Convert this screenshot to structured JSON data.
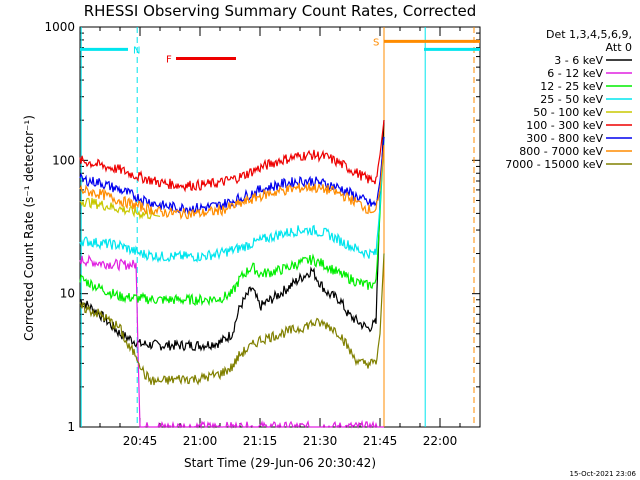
{
  "chart_data": {
    "type": "line",
    "title": "RHESSI Observing Summary Count Rates, Corrected",
    "xlabel": "Start Time (29-Jun-06 20:30:42)",
    "ylabel": "Corrected Count Rate (s⁻¹ detector⁻¹)",
    "yscale": "log",
    "ylim": [
      1,
      1000
    ],
    "xlim_minutes": [
      0,
      100
    ],
    "x_tick_labels": [
      "20:45",
      "21:00",
      "21:15",
      "21:30",
      "21:45",
      "22:00"
    ],
    "x_tick_minutes": [
      15,
      30,
      45,
      60,
      75,
      90
    ],
    "y_tick_labels": [
      "1",
      "10",
      "100",
      "1000"
    ],
    "y_tick_values": [
      1,
      10,
      100,
      1000
    ],
    "legend_header": [
      "Det 1,3,4,5,6,9,",
      "Att 0"
    ],
    "legend_position": "right, outside plot",
    "footer_stamp": "15-Oct-2021 23:06",
    "series": [
      {
        "name": "3 - 6 keV",
        "color": "#000000",
        "x": [
          0,
          5,
          10,
          15,
          20,
          25,
          30,
          35,
          38,
          40,
          43,
          45,
          50,
          55,
          58,
          60,
          62,
          65,
          67,
          70,
          72,
          74,
          75,
          76
        ],
        "y": [
          9,
          7,
          5,
          4.2,
          4.1,
          4.1,
          4.1,
          4.3,
          5,
          8,
          11,
          8,
          10,
          13,
          15,
          12,
          10,
          9,
          7,
          6,
          5.5,
          6,
          50,
          200
        ]
      },
      {
        "name": "6 - 12 keV",
        "color": "#e020e0",
        "x": [
          0,
          5,
          10,
          14,
          15,
          20,
          25,
          30,
          35,
          38,
          40,
          45,
          50,
          55,
          58,
          60,
          62,
          65,
          70,
          72,
          74,
          75,
          76
        ],
        "y": [
          18,
          17,
          16.5,
          16.5,
          1,
          1,
          1,
          1,
          1,
          1,
          1,
          1,
          1,
          1,
          1,
          1,
          1,
          1,
          1,
          1,
          1,
          1,
          1
        ]
      },
      {
        "name": "12 - 25 keV",
        "color": "#00ee00",
        "x": [
          0,
          5,
          10,
          15,
          20,
          25,
          30,
          35,
          38,
          40,
          43,
          45,
          50,
          55,
          58,
          60,
          62,
          65,
          70,
          72,
          74,
          75,
          76
        ],
        "y": [
          13,
          11,
          9.5,
          9.2,
          9,
          9,
          9,
          9.2,
          10,
          13,
          16,
          14,
          15,
          17,
          18,
          17,
          16,
          14,
          12,
          11.5,
          12,
          40,
          150
        ]
      },
      {
        "name": "25 - 50 keV",
        "color": "#00e5ee",
        "x": [
          0,
          5,
          10,
          15,
          20,
          25,
          30,
          35,
          40,
          45,
          50,
          55,
          58,
          60,
          62,
          65,
          70,
          72,
          74,
          75,
          76
        ],
        "y": [
          25,
          24,
          23,
          20,
          19,
          19,
          19,
          20,
          22,
          25,
          28,
          30,
          30,
          29,
          28,
          25,
          21,
          20,
          20,
          45,
          150
        ]
      },
      {
        "name": "50 - 100 keV",
        "color": "#c8c800",
        "x": [
          0,
          3,
          6,
          9,
          12,
          15,
          18,
          20
        ],
        "y": [
          50,
          48,
          46,
          44,
          42,
          40,
          39,
          38
        ]
      },
      {
        "name": "100 - 300 keV",
        "color": "#ee0000",
        "x": [
          0,
          5,
          10,
          15,
          20,
          25,
          30,
          35,
          40,
          45,
          50,
          55,
          58,
          60,
          62,
          65,
          70,
          72,
          74,
          75,
          76
        ],
        "y": [
          100,
          92,
          85,
          75,
          68,
          65,
          65,
          68,
          75,
          88,
          100,
          108,
          110,
          108,
          105,
          95,
          78,
          72,
          72,
          110,
          200
        ]
      },
      {
        "name": "300 - 800 keV",
        "color": "#0000ee",
        "x": [
          0,
          5,
          10,
          15,
          20,
          25,
          30,
          35,
          40,
          45,
          50,
          55,
          58,
          60,
          62,
          65,
          70,
          72,
          74,
          75,
          76
        ],
        "y": [
          72,
          68,
          60,
          52,
          46,
          44,
          44,
          46,
          52,
          60,
          66,
          70,
          70,
          68,
          66,
          62,
          52,
          48,
          46,
          70,
          150
        ]
      },
      {
        "name": "800 - 7000 keV",
        "color": "#ff8c00",
        "x": [
          0,
          5,
          10,
          15,
          20,
          25,
          30,
          35,
          40,
          45,
          50,
          55,
          58,
          60,
          62,
          65,
          70,
          72,
          74,
          75,
          76
        ],
        "y": [
          60,
          56,
          50,
          45,
          41,
          40,
          40,
          42,
          47,
          54,
          59,
          62,
          63,
          61,
          60,
          56,
          47,
          43,
          42,
          60,
          130
        ]
      },
      {
        "name": "7000 - 15000 keV",
        "color": "#808000",
        "x": [
          0,
          5,
          10,
          12,
          14,
          15,
          16,
          18,
          20,
          25,
          30,
          35,
          38,
          40,
          45,
          50,
          55,
          58,
          60,
          62,
          65,
          68,
          70,
          72,
          74,
          75,
          76
        ],
        "y": [
          8,
          7,
          5.5,
          4,
          3.5,
          3,
          2.5,
          2.2,
          2.2,
          2.3,
          2.3,
          2.5,
          2.8,
          3.5,
          4.5,
          5,
          5.5,
          6,
          6,
          5.8,
          5,
          3.5,
          3,
          3,
          3,
          5,
          20
        ]
      }
    ],
    "attenuator_band": {
      "label": "F",
      "color": "#ee0000",
      "x_minutes": [
        24,
        39
      ],
      "y": 580
    },
    "orbit_flags": [
      {
        "label": "N",
        "color": "#00e5ee",
        "segments_minutes": [
          [
            0,
            12
          ],
          [
            86,
            100
          ]
        ],
        "y": 680
      },
      {
        "label": "S",
        "color": "#ff8c00",
        "segments_minutes": [
          [
            76,
            100
          ]
        ],
        "y": 780
      }
    ],
    "vertical_markers_minutes": [
      {
        "x": 0.3,
        "color": "#00e5ee",
        "style": "solid"
      },
      {
        "x": 14.3,
        "color": "#00e5ee",
        "style": "dashed"
      },
      {
        "x": 76,
        "color": "#ff8c00",
        "style": "solid"
      },
      {
        "x": 86.3,
        "color": "#00e5ee",
        "style": "solid"
      },
      {
        "x": 98.5,
        "color": "#ff8c00",
        "style": "dashed"
      }
    ],
    "grid": false
  }
}
